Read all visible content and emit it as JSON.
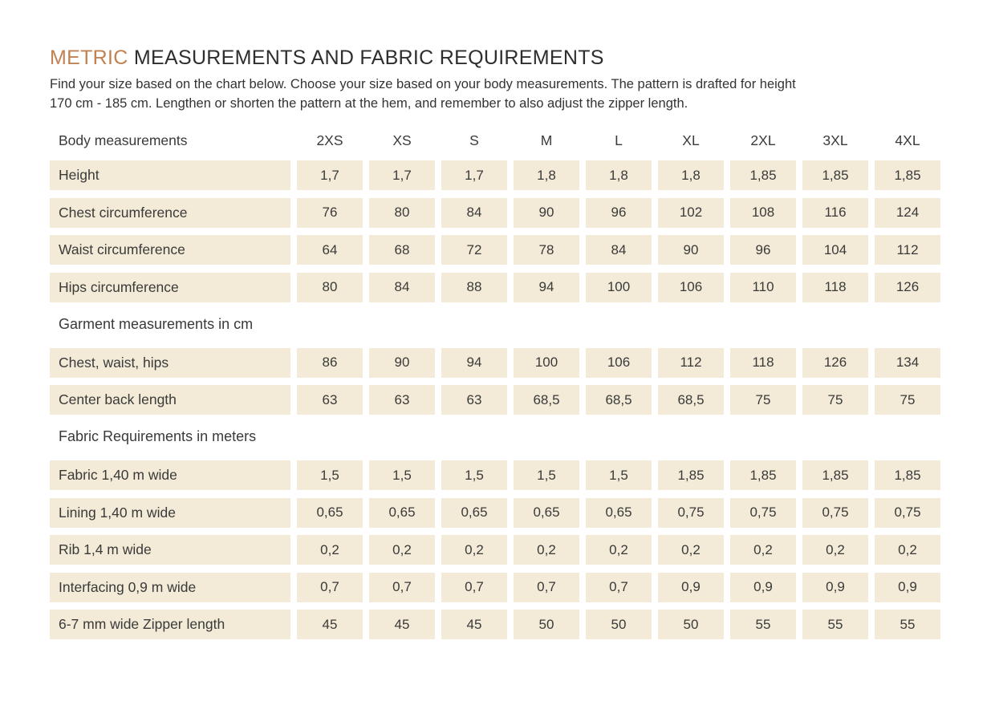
{
  "title": {
    "accent": "METRIC",
    "rest": "MEASUREMENTS AND FABRIC REQUIREMENTS"
  },
  "intro": {
    "line1": "Find your size based on the chart below. Choose your size based on your body measurements. The pattern is drafted for height",
    "line2": "170 cm - 185 cm.  Lengthen or shorten the pattern at the hem, and remember to also adjust the zipper length."
  },
  "table": {
    "header_label": "Body measurements",
    "sizes": [
      "2XS",
      "XS",
      "S",
      "M",
      "L",
      "XL",
      "2XL",
      "3XL",
      "4XL"
    ],
    "sections": [
      {
        "heading": "",
        "rows": [
          {
            "label": "Height",
            "values": [
              "1,7",
              "1,7",
              "1,7",
              "1,8",
              "1,8",
              "1,8",
              "1,85",
              "1,85",
              "1,85"
            ]
          },
          {
            "label": "Chest circumference",
            "values": [
              "76",
              "80",
              "84",
              "90",
              "96",
              "102",
              "108",
              "116",
              "124"
            ]
          },
          {
            "label": "Waist circumference",
            "values": [
              "64",
              "68",
              "72",
              "78",
              "84",
              "90",
              "96",
              "104",
              "112"
            ]
          },
          {
            "label": "Hips circumference",
            "values": [
              "80",
              "84",
              "88",
              "94",
              "100",
              "106",
              "110",
              "118",
              "126"
            ]
          }
        ]
      },
      {
        "heading": "Garment measurements in cm",
        "rows": [
          {
            "label": "Chest, waist, hips",
            "values": [
              "86",
              "90",
              "94",
              "100",
              "106",
              "112",
              "118",
              "126",
              "134"
            ]
          },
          {
            "label": "Center back length",
            "values": [
              "63",
              "63",
              "63",
              "68,5",
              "68,5",
              "68,5",
              "75",
              "75",
              "75"
            ]
          }
        ]
      },
      {
        "heading": "Fabric Requirements in meters",
        "rows": [
          {
            "label": "Fabric 1,40 m wide",
            "values": [
              "1,5",
              "1,5",
              "1,5",
              "1,5",
              "1,5",
              "1,85",
              "1,85",
              "1,85",
              "1,85"
            ]
          },
          {
            "label": "Lining 1,40 m wide",
            "values": [
              "0,65",
              "0,65",
              "0,65",
              "0,65",
              "0,65",
              "0,75",
              "0,75",
              "0,75",
              "0,75"
            ]
          },
          {
            "label": "Rib 1,4 m wide",
            "values": [
              "0,2",
              "0,2",
              "0,2",
              "0,2",
              "0,2",
              "0,2",
              "0,2",
              "0,2",
              "0,2"
            ]
          },
          {
            "label": "Interfacing 0,9 m wide",
            "values": [
              "0,7",
              "0,7",
              "0,7",
              "0,7",
              "0,7",
              "0,9",
              "0,9",
              "0,9",
              "0,9"
            ]
          },
          {
            "label": "6-7 mm wide Zipper length",
            "values": [
              "45",
              "45",
              "45",
              "50",
              "50",
              "50",
              "55",
              "55",
              "55"
            ]
          }
        ]
      }
    ]
  },
  "colors": {
    "accent": "#c08252",
    "cell_background": "#f3ebd7",
    "text": "#3a3a3a"
  }
}
